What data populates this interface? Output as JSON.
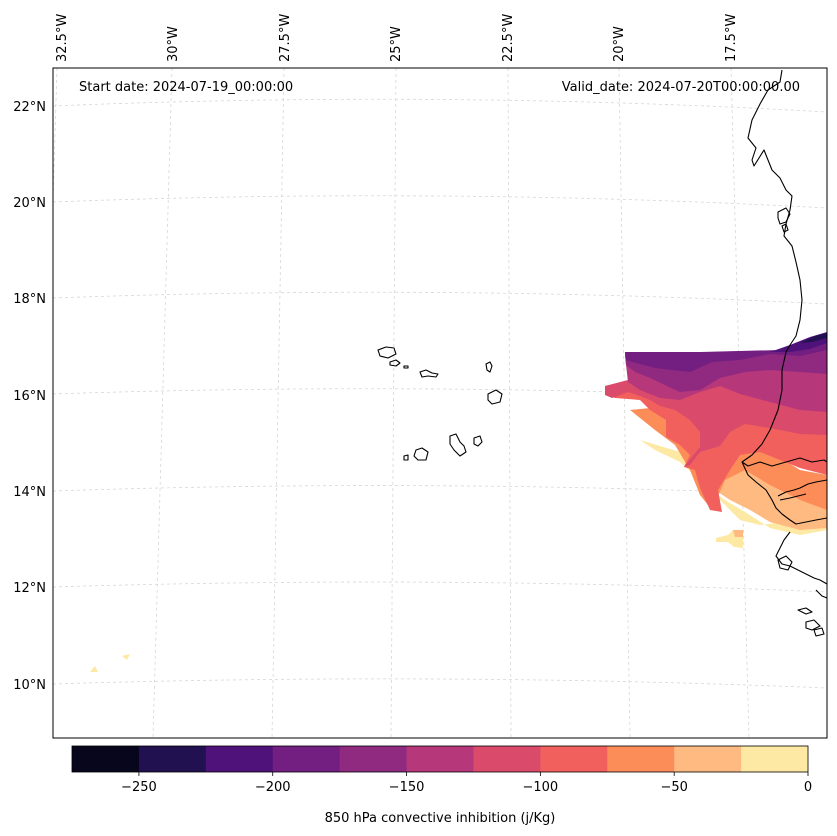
{
  "annotations": {
    "start_date": "Start date: 2024-07-19_00:00:00",
    "valid_date": "Valid_date: 2024-07-20T00:00:00.00"
  },
  "grid": {
    "lon_labels": [
      "32.5°W",
      "30°W",
      "27.5°W",
      "25°W",
      "22.5°W",
      "20°W",
      "17.5°W"
    ],
    "lat_labels": [
      "22°N",
      "20°N",
      "18°N",
      "16°N",
      "14°N",
      "12°N",
      "10°N"
    ]
  },
  "colorbar": {
    "label": "850 hPa convective inhibition (j/Kg)",
    "levels": [
      -275,
      -250,
      -225,
      -200,
      -175,
      -150,
      -125,
      -100,
      -75,
      -50,
      -25,
      0
    ],
    "tick_values": [
      -250,
      -200,
      -150,
      -100,
      -50,
      0
    ],
    "tick_labels": [
      "−250",
      "−200",
      "−150",
      "−100",
      "−50",
      "0"
    ],
    "colors": [
      "#07061c",
      "#221150",
      "#4f127b",
      "#721f81",
      "#8f2a80",
      "#b6377a",
      "#da4a6b",
      "#f1605d",
      "#fc8d59",
      "#feba80",
      "#fde9a3"
    ]
  },
  "colors": {
    "coastline": "#000000",
    "gridline": "#d0d0d0"
  }
}
